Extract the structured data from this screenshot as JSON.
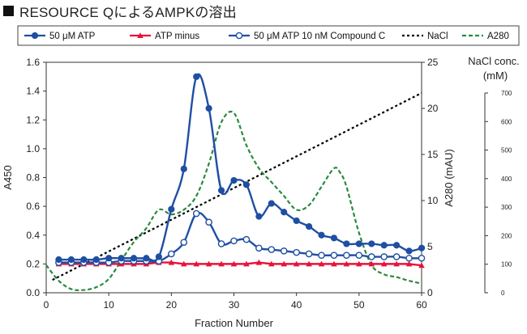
{
  "title": "RESOURCE QによるAMPKの溶出",
  "chart_data": {
    "type": "line",
    "xlabel": "Fraction Number",
    "xlim": [
      0,
      60
    ],
    "xticks": [
      0,
      10,
      20,
      30,
      40,
      50,
      60
    ],
    "y_left": {
      "label": "A450",
      "lim": [
        0,
        1.6
      ],
      "ticks": [
        "0.0",
        "0.2",
        "0.4",
        "0.6",
        "0.8",
        "1.0",
        "1.2",
        "1.4",
        "1.6"
      ]
    },
    "y_right1": {
      "label": "A280 (mAU)",
      "lim": [
        0,
        25
      ],
      "ticks": [
        "0",
        "5",
        "10",
        "15",
        "20",
        "25"
      ]
    },
    "y_right2": {
      "label_line1": "NaCl conc.",
      "label_line2": "(mM)",
      "lim": [
        0,
        700
      ],
      "ticks": [
        "0",
        "100",
        "200",
        "300",
        "400",
        "500",
        "600",
        "700"
      ]
    },
    "legend_position": "top",
    "series": [
      {
        "name": "50 μM ATP",
        "axis": "left",
        "color": "#1f4fa3",
        "marker": "filled-circle",
        "style": "solid",
        "x": [
          2,
          4,
          6,
          8,
          10,
          12,
          14,
          16,
          18,
          20,
          22,
          24,
          26,
          28,
          30,
          32,
          34,
          36,
          38,
          40,
          42,
          44,
          46,
          48,
          50,
          52,
          54,
          56,
          58,
          60
        ],
        "y": [
          0.23,
          0.23,
          0.23,
          0.23,
          0.24,
          0.24,
          0.24,
          0.24,
          0.25,
          0.58,
          0.86,
          1.5,
          1.28,
          0.71,
          0.78,
          0.75,
          0.53,
          0.62,
          0.56,
          0.5,
          0.46,
          0.4,
          0.38,
          0.34,
          0.34,
          0.34,
          0.33,
          0.33,
          0.29,
          0.31
        ]
      },
      {
        "name": "ATP minus",
        "axis": "left",
        "color": "#e8123a",
        "marker": "triangle",
        "style": "solid",
        "x": [
          2,
          4,
          6,
          8,
          10,
          12,
          14,
          16,
          18,
          20,
          22,
          24,
          26,
          28,
          30,
          32,
          34,
          36,
          38,
          40,
          42,
          44,
          46,
          48,
          50,
          52,
          54,
          56,
          58,
          60
        ],
        "y": [
          0.2,
          0.2,
          0.2,
          0.2,
          0.2,
          0.2,
          0.2,
          0.2,
          0.21,
          0.21,
          0.2,
          0.2,
          0.2,
          0.2,
          0.2,
          0.2,
          0.21,
          0.2,
          0.2,
          0.2,
          0.2,
          0.2,
          0.2,
          0.2,
          0.2,
          0.2,
          0.2,
          0.2,
          0.2,
          0.19
        ]
      },
      {
        "name": "50 μM ATP 10 nM Compound C",
        "axis": "left",
        "color": "#1f4fa3",
        "marker": "open-circle",
        "style": "solid",
        "x": [
          2,
          4,
          6,
          8,
          10,
          12,
          14,
          16,
          18,
          20,
          22,
          24,
          26,
          28,
          30,
          32,
          34,
          36,
          38,
          40,
          42,
          44,
          46,
          48,
          50,
          52,
          54,
          56,
          58,
          60
        ],
        "y": [
          0.21,
          0.21,
          0.21,
          0.21,
          0.21,
          0.22,
          0.22,
          0.22,
          0.22,
          0.27,
          0.35,
          0.55,
          0.49,
          0.34,
          0.36,
          0.37,
          0.31,
          0.3,
          0.29,
          0.28,
          0.27,
          0.26,
          0.26,
          0.26,
          0.26,
          0.25,
          0.25,
          0.25,
          0.24,
          0.24
        ]
      },
      {
        "name": "NaCl",
        "axis": "right2",
        "color": "#000000",
        "marker": "none",
        "style": "dotted",
        "x": [
          1,
          60
        ],
        "y": [
          45,
          700
        ]
      },
      {
        "name": "A280",
        "axis": "right1",
        "color": "#2a8a3e",
        "marker": "none",
        "style": "dashed",
        "x": [
          0,
          2,
          4,
          6,
          8,
          10,
          12,
          14,
          16,
          18,
          20,
          22,
          24,
          26,
          28,
          30,
          32,
          34,
          36,
          38,
          40,
          42,
          44,
          46,
          47,
          48,
          50,
          52,
          54,
          56,
          58,
          60
        ],
        "y": [
          3.0,
          1.3,
          0.4,
          0.3,
          0.6,
          1.5,
          3.5,
          5.5,
          7.0,
          9.0,
          8.5,
          9.0,
          10.5,
          14.0,
          18.5,
          19.5,
          16.0,
          13.5,
          12.0,
          10.5,
          9.0,
          9.5,
          11.5,
          13.5,
          13.0,
          11.5,
          6.5,
          3.0,
          2.0,
          1.7,
          1.3,
          1.0
        ]
      }
    ]
  }
}
